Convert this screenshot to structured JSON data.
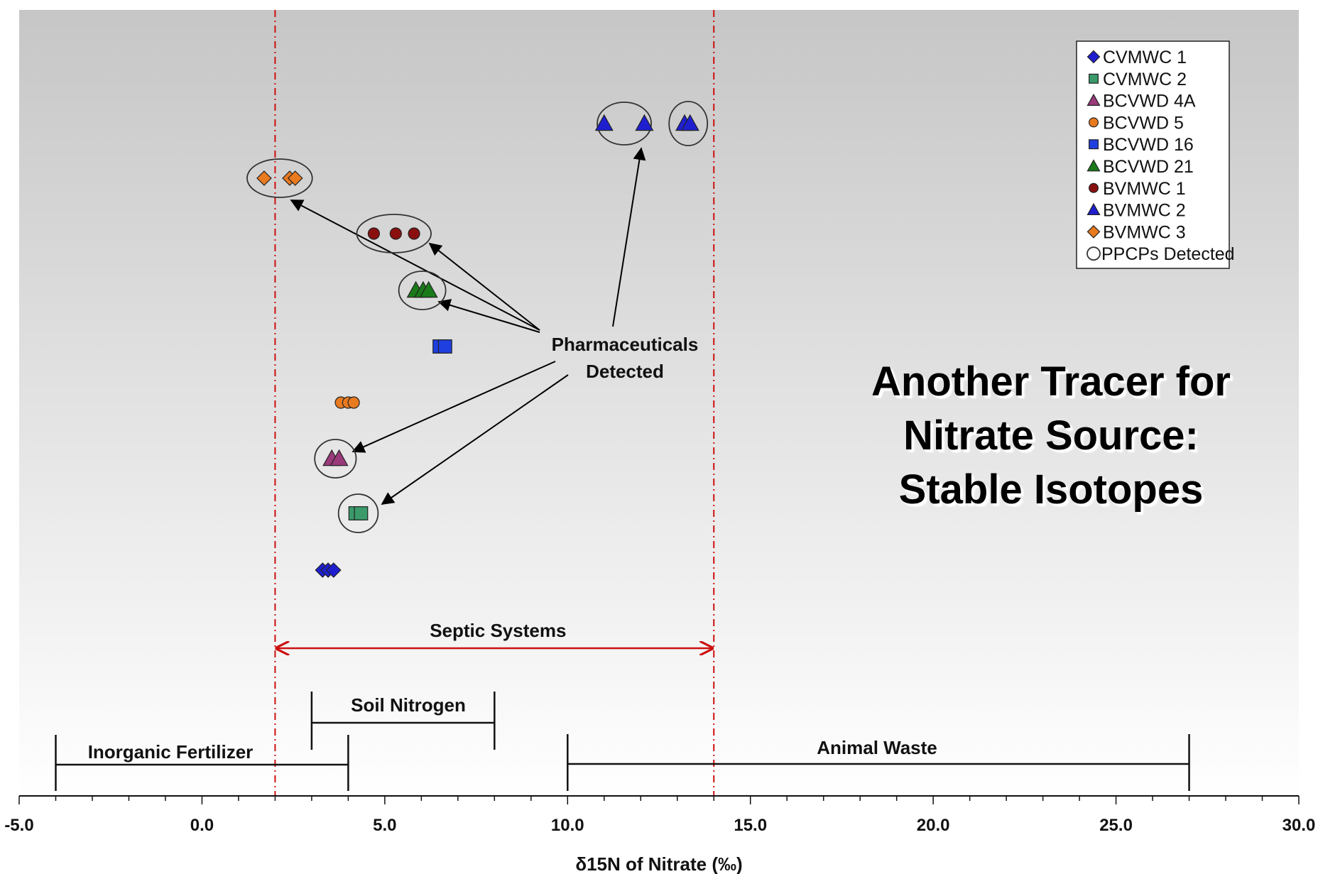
{
  "title_lines": [
    "Another Tracer for",
    "Nitrate Source:",
    "Stable Isotopes"
  ],
  "chart_data": {
    "type": "scatter",
    "xlabel": "δ15N of Nitrate (‰)",
    "ylabel": "",
    "xlim": [
      -5,
      30
    ],
    "x_tick_labels": [
      "-5.0",
      "0.0",
      "5.0",
      "10.0",
      "15.0",
      "20.0",
      "25.0",
      "30.0"
    ],
    "x_ticks": [
      -5,
      0,
      5,
      10,
      15,
      20,
      25,
      30
    ],
    "grid": false,
    "legend_position": "top-right",
    "series": [
      {
        "name": "CVMWC 1",
        "marker": "diamond",
        "color": "#1f1fd0",
        "row": 0,
        "x": [
          3.3,
          3.45,
          3.6
        ],
        "ppcp": false
      },
      {
        "name": "CVMWC 2",
        "marker": "square",
        "color": "#3a9a6a",
        "row": 1,
        "x": [
          4.2,
          4.35
        ],
        "ppcp": true
      },
      {
        "name": "BCVWD 4A",
        "marker": "triangle",
        "color": "#9a3a7a",
        "row": 2,
        "x": [
          3.55,
          3.75
        ],
        "ppcp": true
      },
      {
        "name": "BCVWD 5",
        "marker": "circle",
        "color": "#e87a20",
        "row": 3,
        "x": [
          3.8,
          4.0,
          4.15
        ],
        "ppcp": false
      },
      {
        "name": "BCVWD 16",
        "marker": "square",
        "color": "#1f3fe0",
        "row": 4,
        "x": [
          6.5,
          6.65
        ],
        "ppcp": false
      },
      {
        "name": "BCVWD 21",
        "marker": "triangle",
        "color": "#1a7a1a",
        "row": 5,
        "x": [
          5.85,
          6.05,
          6.2
        ],
        "ppcp": true
      },
      {
        "name": "BVMWC 1",
        "marker": "circle",
        "color": "#8a1010",
        "row": 6,
        "x": [
          4.7,
          5.3,
          5.8
        ],
        "ppcp": true
      },
      {
        "name": "BVMWC 2",
        "marker": "triangle",
        "color": "#1f1fd0",
        "row": 7,
        "x": [
          11.0,
          12.1,
          13.2,
          13.35
        ],
        "ppcp": true
      },
      {
        "name": "BVMWC 3",
        "marker": "diamond",
        "color": "#e87a20",
        "row": 8,
        "x": [
          1.7,
          2.4,
          2.55
        ],
        "ppcp": true
      }
    ],
    "legend_extra": "PPCPs Detected",
    "source_ranges": [
      {
        "label": "Septic Systems",
        "x": [
          2.0,
          14.0
        ],
        "style": "arrow-red"
      },
      {
        "label": "Soil Nitrogen",
        "x": [
          3.0,
          8.0
        ],
        "style": "bracket"
      },
      {
        "label": "Inorganic Fertilizer",
        "x": [
          -4.0,
          4.0
        ],
        "style": "bracket"
      },
      {
        "label": "Animal Waste",
        "x": [
          10.0,
          27.0
        ],
        "style": "bracket"
      }
    ],
    "reference_lines_x": [
      2.0,
      14.0
    ],
    "annotation": {
      "lines": [
        "Pharmaceuticals",
        "Detected"
      ]
    }
  }
}
